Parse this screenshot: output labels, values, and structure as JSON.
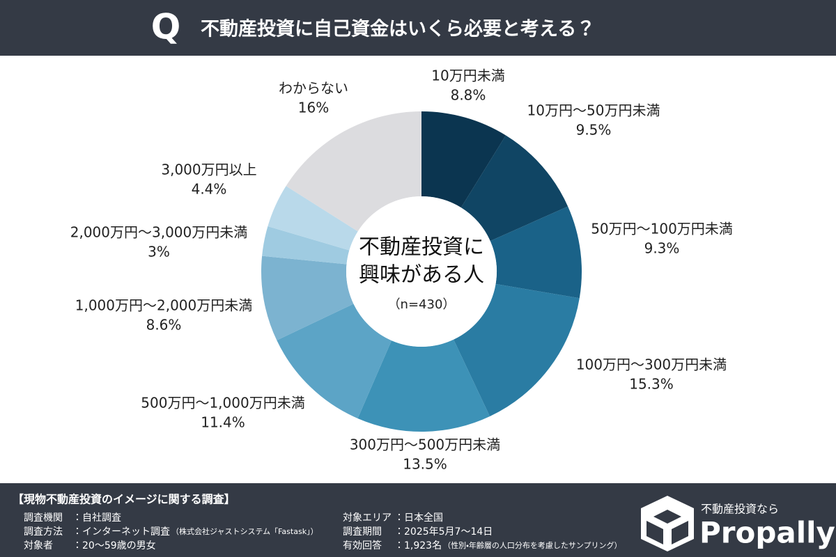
{
  "header": {
    "badge": "Q"
  },
  "chart_data": {
    "type": "donut",
    "title": "不動産投資に自己資金はいくら必要と考える？",
    "categories": [
      "10万円未満",
      "10万円〜50万円未満",
      "50万円〜100万円未満",
      "100万円〜300万円未満",
      "300万円〜500万円未満",
      "500万円〜1,000万円未満",
      "1,000万円〜2,000万円未満",
      "2,000万円〜3,000万円未満",
      "3,000万円以上",
      "わからない"
    ],
    "values": [
      8.8,
      9.5,
      9.3,
      15.3,
      13.5,
      11.4,
      8.6,
      3,
      4.4,
      16
    ],
    "value_labels": [
      "8.8%",
      "9.5%",
      "9.3%",
      "15.3%",
      "13.5%",
      "11.4%",
      "8.6%",
      "3%",
      "4.4%",
      "16%"
    ],
    "colors": [
      "#0b3550",
      "#104564",
      "#1a6288",
      "#2a7ca3",
      "#3d92b7",
      "#5ca4c6",
      "#7cb3d0",
      "#9fcbe1",
      "#b9d9ea",
      "#dcdcdf"
    ],
    "center_label": [
      "不動産投資に",
      "興味がある人"
    ],
    "center_note": "（n=430）"
  },
  "footer": {
    "title": "【現物不動産投資のイメージに関する調査】",
    "rows": [
      {
        "label": "調査機関",
        "value": "：自社調査"
      },
      {
        "label": "調査方法",
        "value": "：インターネット調査",
        "note": "（株式会社ジャストシステム「Fastask」）"
      },
      {
        "label": "対象者",
        "value": "：20〜59歳の男女"
      },
      {
        "label": "対象エリア",
        "value": "：日本全国"
      },
      {
        "label": "調査期間",
        "value": "：2025年5月7〜14日"
      },
      {
        "label": "有効回答",
        "value": "：1,923名",
        "note": "（性別・年齢層の人口分布を考慮したサンプリング）"
      }
    ],
    "brand": {
      "tagline": "不動産投資なら",
      "name": "Propally"
    }
  }
}
